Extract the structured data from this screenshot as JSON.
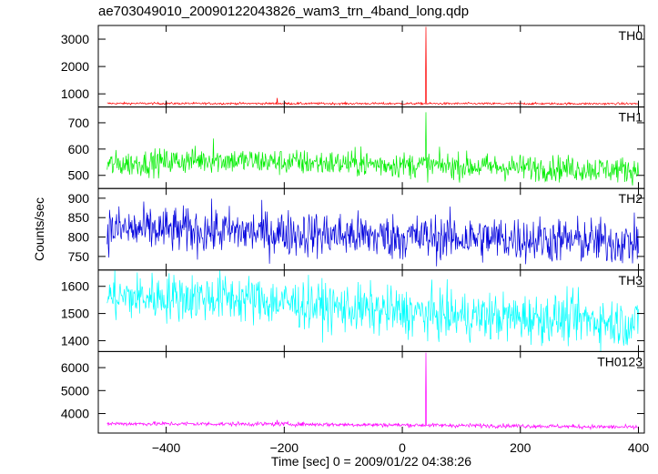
{
  "chart_data": {
    "type": "line",
    "title": "ae703049010_20090122043826_wam3_trn_4band_long.qdp",
    "xlabel": "Time [sec] 0 = 2009/01/22 04:38:26",
    "ylabel": "Counts/sec",
    "xlim": [
      -515,
      410
    ],
    "x_ticks": [
      -400,
      -200,
      0,
      200,
      400
    ],
    "x_tick_labels": [
      "−400",
      "−200",
      "0",
      "200",
      "400"
    ],
    "grid": false,
    "panels": [
      {
        "name": "TH0",
        "color": "#ff0000",
        "ylim": [
          520,
          3500
        ],
        "y_ticks": [
          1000,
          2000,
          3000
        ],
        "y_tick_labels": [
          "1000",
          "2000",
          "3000"
        ],
        "x_start": -500,
        "x_end": 400,
        "dt": 1,
        "baseline": [
          [
            -500,
            650
          ],
          [
            400,
            640
          ]
        ],
        "noise": 20,
        "spikes": [
          {
            "x": -212,
            "y": 850
          },
          {
            "x": 40,
            "y": 3450
          }
        ]
      },
      {
        "name": "TH1",
        "color": "#00ee00",
        "ylim": [
          450,
          760
        ],
        "y_ticks": [
          500,
          600,
          700
        ],
        "y_tick_labels": [
          "500",
          "600",
          "700"
        ],
        "x_start": -500,
        "x_end": 400,
        "dt": 1,
        "baseline": [
          [
            -500,
            540
          ],
          [
            -330,
            560
          ],
          [
            -200,
            550
          ],
          [
            0,
            540
          ],
          [
            200,
            530
          ],
          [
            400,
            520
          ]
        ],
        "noise": 25,
        "spikes": [
          {
            "x": 40,
            "y": 740
          },
          {
            "x": -320,
            "y": 640
          },
          {
            "x": -70,
            "y": 610
          }
        ]
      },
      {
        "name": "TH2",
        "color": "#0000dd",
        "ylim": [
          715,
          925
        ],
        "y_ticks": [
          750,
          800,
          850,
          900
        ],
        "y_tick_labels": [
          "750",
          "800",
          "850",
          "900"
        ],
        "x_start": -500,
        "x_end": 400,
        "dt": 1,
        "baseline": [
          [
            -500,
            820
          ],
          [
            -300,
            815
          ],
          [
            0,
            800
          ],
          [
            200,
            795
          ],
          [
            400,
            785
          ]
        ],
        "noise": 30,
        "spikes": []
      },
      {
        "name": "TH3",
        "color": "#00ffff",
        "ylim": [
          1360,
          1660
        ],
        "y_ticks": [
          1400,
          1500,
          1600
        ],
        "y_tick_labels": [
          "1400",
          "1500",
          "1600"
        ],
        "x_start": -500,
        "x_end": 400,
        "dt": 1,
        "baseline": [
          [
            -500,
            1560
          ],
          [
            -300,
            1560
          ],
          [
            -100,
            1520
          ],
          [
            100,
            1490
          ],
          [
            300,
            1480
          ],
          [
            400,
            1460
          ]
        ],
        "noise": 45,
        "spikes": []
      },
      {
        "name": "TH0123",
        "color": "#ff00ff",
        "ylim": [
          3150,
          6700
        ],
        "y_ticks": [
          4000,
          5000,
          6000
        ],
        "y_tick_labels": [
          "4000",
          "5000",
          "6000"
        ],
        "x_start": -500,
        "x_end": 400,
        "dt": 1,
        "baseline": [
          [
            -500,
            3560
          ],
          [
            -200,
            3540
          ],
          [
            0,
            3500
          ],
          [
            200,
            3460
          ],
          [
            400,
            3400
          ]
        ],
        "noise": 45,
        "spikes": [
          {
            "x": 40,
            "y": 6650
          },
          {
            "x": -212,
            "y": 3720
          }
        ]
      }
    ]
  }
}
